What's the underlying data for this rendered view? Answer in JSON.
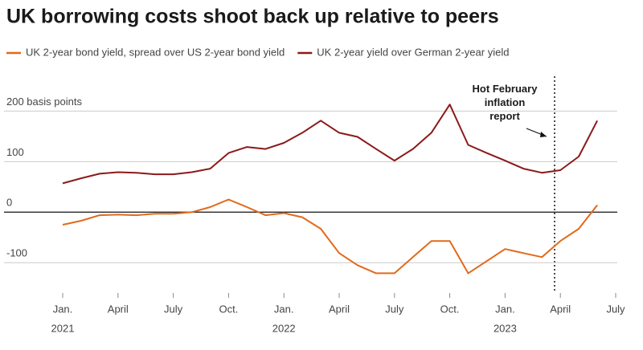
{
  "chart_data": {
    "type": "line",
    "title": "UK borrowing costs shoot back up relative to peers",
    "x": [
      "2021-01",
      "2021-02",
      "2021-03",
      "2021-04",
      "2021-05",
      "2021-06",
      "2021-07",
      "2021-08",
      "2021-09",
      "2021-10",
      "2021-11",
      "2021-12",
      "2022-01",
      "2022-02",
      "2022-03",
      "2022-04",
      "2022-05",
      "2022-06",
      "2022-07",
      "2022-08",
      "2022-09",
      "2022-10",
      "2022-11",
      "2022-12",
      "2023-01",
      "2023-02",
      "2023-03",
      "2023-04",
      "2023-05",
      "2023-06"
    ],
    "series": [
      {
        "name": "UK 2-year bond yield, spread over US 2-year bond yield",
        "color": "#e06a1b",
        "values": [
          -25,
          -17,
          -6,
          -5,
          -6,
          -3,
          -3,
          0,
          10,
          25,
          10,
          -6,
          -2,
          -10,
          -33,
          -81,
          -105,
          -121,
          -121,
          -89,
          -57,
          -57,
          -121,
          -97,
          -73,
          -81,
          -89,
          -57,
          -33,
          14
        ]
      },
      {
        "name": "UK 2-year yield over German 2-year yield",
        "color": "#8b1a1a",
        "values": [
          57,
          67,
          76,
          79,
          78,
          75,
          75,
          79,
          86,
          117,
          129,
          125,
          137,
          157,
          181,
          157,
          149,
          125,
          102,
          125,
          157,
          213,
          133,
          117,
          102,
          86,
          78,
          83,
          110,
          181
        ]
      }
    ],
    "xlim": [
      "2021-01",
      "2023-07"
    ],
    "xticks": [
      {
        "value": "2021-01",
        "label": "Jan."
      },
      {
        "value": "2021-04",
        "label": "April"
      },
      {
        "value": "2021-07",
        "label": "July"
      },
      {
        "value": "2021-10",
        "label": "Oct."
      },
      {
        "value": "2022-01",
        "label": "Jan."
      },
      {
        "value": "2022-04",
        "label": "April"
      },
      {
        "value": "2022-07",
        "label": "July"
      },
      {
        "value": "2022-10",
        "label": "Oct."
      },
      {
        "value": "2023-01",
        "label": "Jan."
      },
      {
        "value": "2023-04",
        "label": "April"
      },
      {
        "value": "2023-07",
        "label": "July"
      }
    ],
    "year_labels": [
      {
        "value": "2021-01",
        "label": "2021"
      },
      {
        "value": "2022-01",
        "label": "2022"
      },
      {
        "value": "2023-01",
        "label": "2023"
      }
    ],
    "ylim": [
      -160,
      280
    ],
    "yticks": [
      -100,
      0,
      100,
      {
        "value": 200,
        "label": "200 basis points"
      }
    ],
    "grid": true,
    "annotation": "Hot February inflation report"
  }
}
